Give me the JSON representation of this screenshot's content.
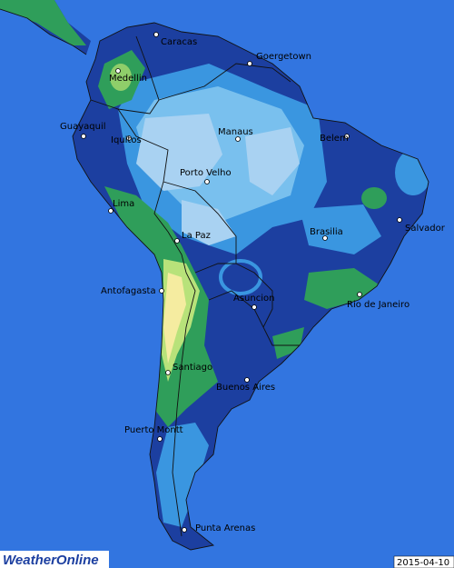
{
  "map": {
    "cities": [
      "Caracas",
      "Goergetown",
      "Medellin",
      "Guayaquil",
      "Iquitos",
      "Manaus",
      "Belem",
      "Porto Velho",
      "Lima",
      "Salvador",
      "La Paz",
      "Brasilia",
      "Antofagasta",
      "Rio de Janeiro",
      "Asuncion",
      "Santiago",
      "Buenos Aires",
      "Puerto Montt",
      "Punta Arenas"
    ],
    "date": "2015-04-10",
    "logo": "WeatherOnline"
  }
}
